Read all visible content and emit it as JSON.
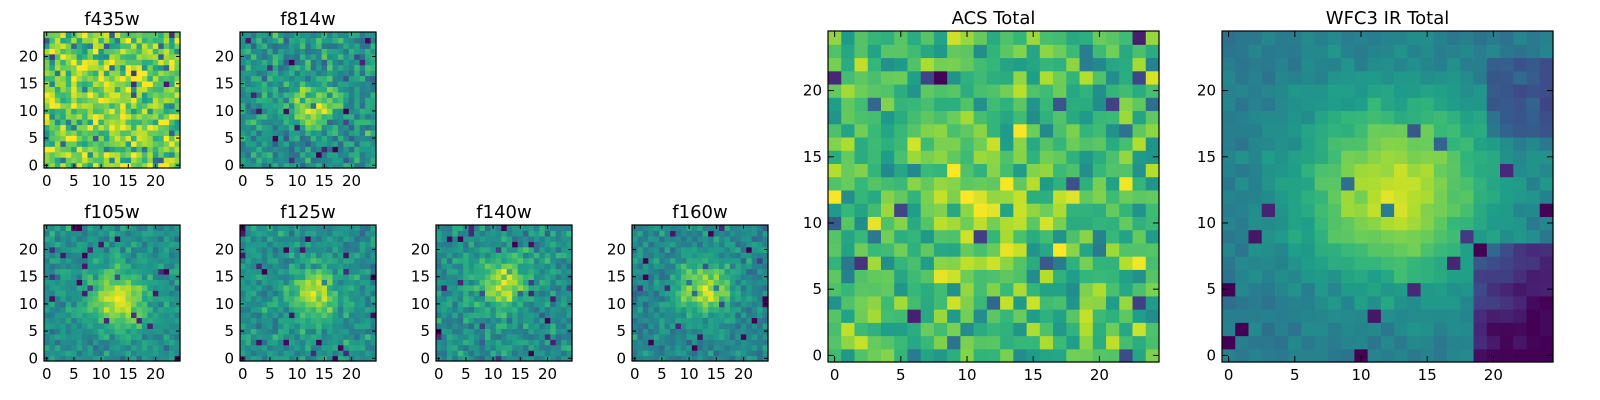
{
  "chart_data": [
    {
      "type": "heatmap",
      "title": "f435w",
      "size": 25,
      "colormap": "viridis",
      "xticks": [
        "0",
        "5",
        "10",
        "15",
        "20"
      ],
      "yticks": [
        "0",
        "5",
        "10",
        "15",
        "20"
      ],
      "xlim": [
        0,
        24
      ],
      "ylim": [
        0,
        24
      ],
      "source": {
        "cx": 12,
        "cy": 12,
        "sigma": 4,
        "peak": 0.05,
        "base": 0.78,
        "noise": 0.24,
        "seed": 3
      }
    },
    {
      "type": "heatmap",
      "title": "f814w",
      "size": 25,
      "colormap": "viridis",
      "xticks": [
        "0",
        "5",
        "10",
        "15",
        "20"
      ],
      "yticks": [
        "0",
        "5",
        "10",
        "15",
        "20"
      ],
      "xlim": [
        0,
        24
      ],
      "ylim": [
        0,
        24
      ],
      "source": {
        "cx": 13,
        "cy": 11,
        "sigma": 2.6,
        "peak": 0.38,
        "base": 0.52,
        "noise": 0.17,
        "seed": 11
      }
    },
    {
      "type": "heatmap",
      "title": "f105w",
      "size": 25,
      "colormap": "viridis",
      "xticks": [
        "0",
        "5",
        "10",
        "15",
        "20"
      ],
      "yticks": [
        "0",
        "5",
        "10",
        "15",
        "20"
      ],
      "xlim": [
        0,
        24
      ],
      "ylim": [
        0,
        24
      ],
      "source": {
        "cx": 13,
        "cy": 11,
        "sigma": 3.6,
        "peak": 0.42,
        "base": 0.5,
        "noise": 0.12,
        "seed": 21
      }
    },
    {
      "type": "heatmap",
      "title": "f125w",
      "size": 25,
      "colormap": "viridis",
      "xticks": [
        "0",
        "5",
        "10",
        "15",
        "20"
      ],
      "yticks": [
        "0",
        "5",
        "10",
        "15",
        "20"
      ],
      "xlim": [
        0,
        24
      ],
      "ylim": [
        0,
        24
      ],
      "source": {
        "cx": 13,
        "cy": 12,
        "sigma": 3.2,
        "peak": 0.4,
        "base": 0.5,
        "noise": 0.13,
        "seed": 33
      }
    },
    {
      "type": "heatmap",
      "title": "f140w",
      "size": 25,
      "colormap": "viridis",
      "xticks": [
        "0",
        "5",
        "10",
        "15",
        "20"
      ],
      "yticks": [
        "0",
        "5",
        "10",
        "15",
        "20"
      ],
      "xlim": [
        0,
        24
      ],
      "ylim": [
        0,
        24
      ],
      "source": {
        "cx": 12,
        "cy": 14,
        "sigma": 3.2,
        "peak": 0.4,
        "base": 0.5,
        "noise": 0.14,
        "seed": 45
      }
    },
    {
      "type": "heatmap",
      "title": "f160w",
      "size": 25,
      "colormap": "viridis",
      "xticks": [
        "0",
        "5",
        "10",
        "15",
        "20"
      ],
      "yticks": [
        "0",
        "5",
        "10",
        "15",
        "20"
      ],
      "xlim": [
        0,
        24
      ],
      "ylim": [
        0,
        24
      ],
      "source": {
        "cx": 13,
        "cy": 13,
        "sigma": 3.4,
        "peak": 0.45,
        "base": 0.47,
        "noise": 0.12,
        "seed": 57
      }
    },
    {
      "type": "heatmap",
      "title": "ACS Total",
      "size": 25,
      "colormap": "viridis",
      "xticks": [
        "0",
        "5",
        "10",
        "15",
        "20"
      ],
      "yticks": [
        "0",
        "5",
        "10",
        "15",
        "20"
      ],
      "xlim": [
        0,
        24
      ],
      "ylim": [
        0,
        24
      ],
      "source": {
        "cx": 12,
        "cy": 11,
        "sigma": 3.5,
        "peak": 0.2,
        "base": 0.68,
        "noise": 0.2,
        "seed": 71
      }
    },
    {
      "type": "heatmap",
      "title": "WFC3 IR Total",
      "size": 25,
      "colormap": "viridis",
      "xticks": [
        "0",
        "5",
        "10",
        "15",
        "20"
      ],
      "yticks": [
        "0",
        "5",
        "10",
        "15",
        "20"
      ],
      "xlim": [
        0,
        24
      ],
      "ylim": [
        0,
        24
      ],
      "source": {
        "cx": 12.5,
        "cy": 12.5,
        "sigma": 5,
        "peak": 0.5,
        "base": 0.42,
        "noise": 0.05,
        "seed": 89,
        "dark_corner": true
      }
    }
  ]
}
